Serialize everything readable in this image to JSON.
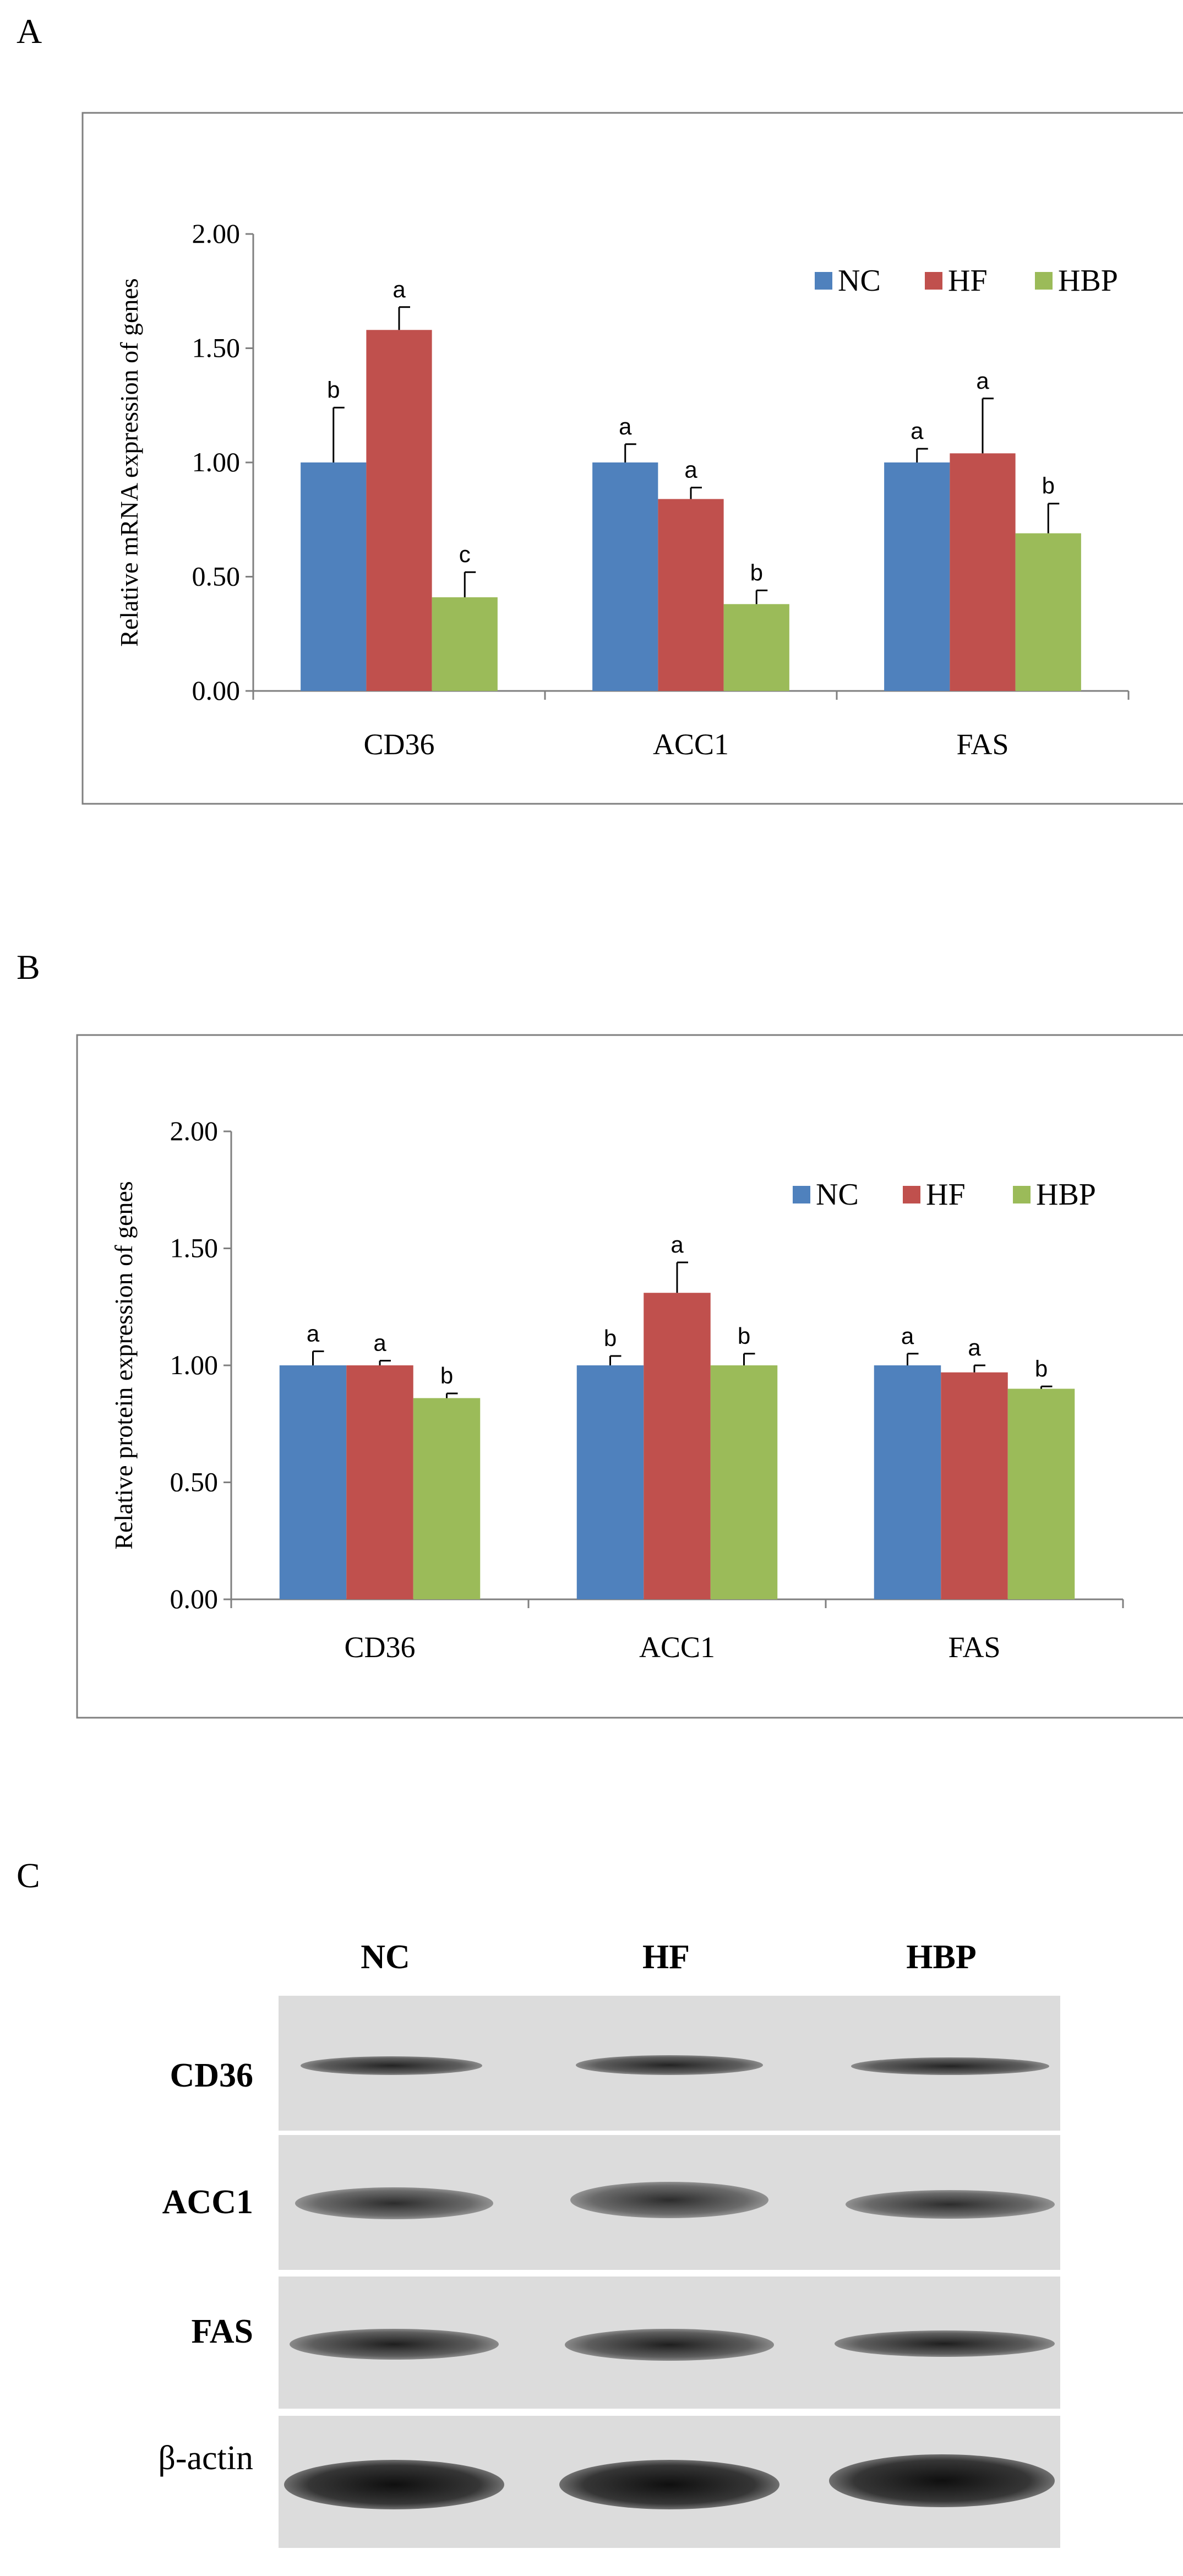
{
  "panels": [
    {
      "letter": "A",
      "chart_data": {
        "type": "bar",
        "ylabel": "Relative mRNA expression of genes",
        "xlabel": "",
        "ylim": [
          0,
          2
        ],
        "yticks": [
          "0.00",
          "0.50",
          "1.00",
          "1.50",
          "2.00"
        ],
        "ytick_values": [
          0,
          0.5,
          1.0,
          1.5,
          2.0
        ],
        "categories": [
          "CD36",
          "ACC1",
          "FAS"
        ],
        "legend_placement": "top-right",
        "grid": false,
        "series": [
          {
            "name": "NC",
            "color": "#4f81bd",
            "values": [
              1.0,
              1.0,
              1.0
            ],
            "errors": [
              0.24,
              0.08,
              0.06
            ],
            "labels": [
              "b",
              "a",
              "a"
            ]
          },
          {
            "name": "HF",
            "color": "#c0504d",
            "values": [
              1.58,
              0.84,
              1.04
            ],
            "errors": [
              0.1,
              0.05,
              0.24
            ],
            "labels": [
              "a",
              "a",
              "a"
            ]
          },
          {
            "name": "HBP",
            "color": "#9bbb59",
            "values": [
              0.41,
              0.38,
              0.69
            ],
            "errors": [
              0.11,
              0.06,
              0.13
            ],
            "labels": [
              "c",
              "b",
              "b"
            ]
          }
        ]
      }
    },
    {
      "letter": "B",
      "chart_data": {
        "type": "bar",
        "ylabel": "Relative protein expression of genes",
        "xlabel": "",
        "ylim": [
          0,
          2
        ],
        "yticks": [
          "0.00",
          "0.50",
          "1.00",
          "1.50",
          "2.00"
        ],
        "ytick_values": [
          0,
          0.5,
          1.0,
          1.5,
          2.0
        ],
        "categories": [
          "CD36",
          "ACC1",
          "FAS"
        ],
        "legend_placement": "top-right",
        "grid": false,
        "series": [
          {
            "name": "NC",
            "color": "#4f81bd",
            "values": [
              1.0,
              1.0,
              1.0
            ],
            "errors": [
              0.06,
              0.04,
              0.05
            ],
            "labels": [
              "a",
              "b",
              "a"
            ]
          },
          {
            "name": "HF",
            "color": "#c0504d",
            "values": [
              1.0,
              1.31,
              0.97
            ],
            "errors": [
              0.02,
              0.13,
              0.03
            ],
            "labels": [
              "a",
              "a",
              "a"
            ]
          },
          {
            "name": "HBP",
            "color": "#9bbb59",
            "values": [
              0.86,
              1.0,
              0.9
            ],
            "errors": [
              0.02,
              0.05,
              0.01
            ],
            "labels": [
              "b",
              "b",
              "b"
            ]
          }
        ]
      }
    }
  ],
  "blot": {
    "letter": "C",
    "lanes": [
      "NC",
      "HF",
      "HBP"
    ],
    "rows": [
      {
        "label": "CD36",
        "bold": true,
        "strength": 0.55
      },
      {
        "label": "ACC1",
        "bold": true,
        "strength": 0.65
      },
      {
        "label": "FAS",
        "bold": true,
        "strength": 0.75
      },
      {
        "label": "β-actin",
        "bold": false,
        "strength": 0.95
      }
    ]
  }
}
